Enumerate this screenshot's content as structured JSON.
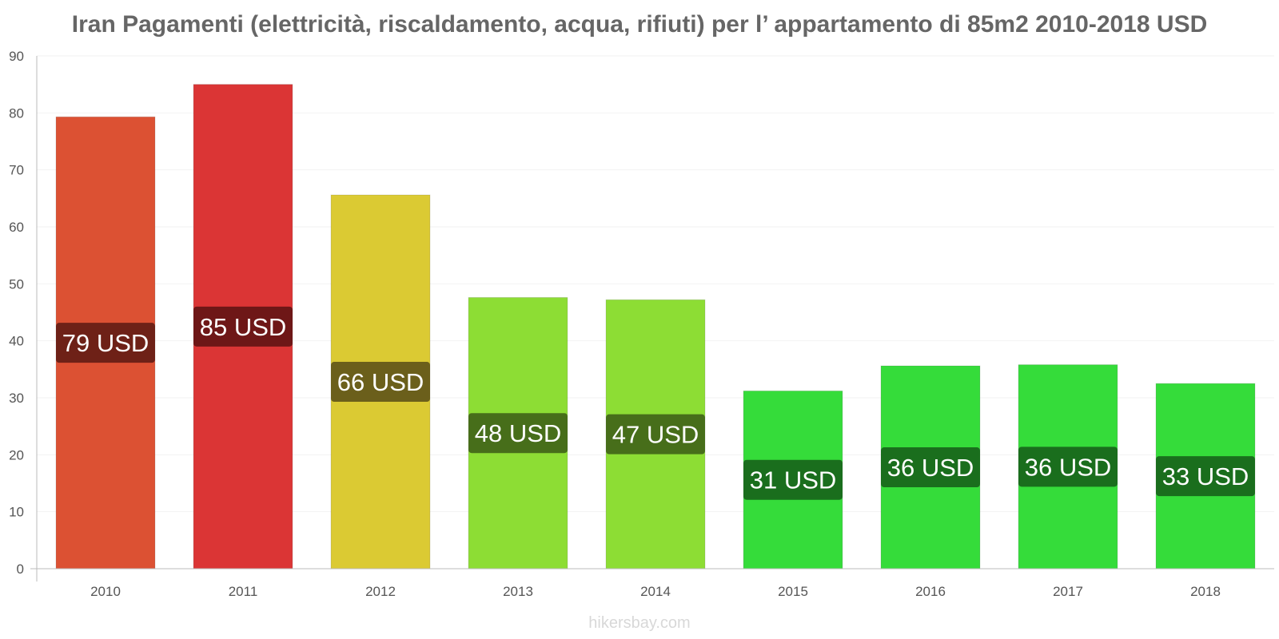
{
  "chart_data": {
    "type": "bar",
    "title": "Iran Pagamenti (elettricità, riscaldamento, acqua, rifiuti) per l’ appartamento di 85m2 2010-2018 USD",
    "xlabel": "",
    "ylabel": "",
    "categories": [
      "2010",
      "2011",
      "2012",
      "2013",
      "2014",
      "2015",
      "2016",
      "2017",
      "2018"
    ],
    "values": [
      79.3,
      85,
      65.6,
      47.6,
      47.2,
      31.2,
      35.6,
      35.8,
      32.5
    ],
    "data_labels": [
      "79 USD",
      "85 USD",
      "66 USD",
      "48 USD",
      "47 USD",
      "31 USD",
      "36 USD",
      "36 USD",
      "33 USD"
    ],
    "ylim": [
      0,
      90
    ],
    "yticks": [
      0,
      10,
      20,
      30,
      40,
      50,
      60,
      70,
      80,
      90
    ],
    "grid": true,
    "bar_colors": [
      "#dc5133",
      "#db3535",
      "#dbca33",
      "#8ddd34",
      "#8ddd34",
      "#35dc3a",
      "#35dc3a",
      "#35dc3a",
      "#35dc3a"
    ],
    "label_colors": [
      "#6e2117",
      "#6e1717",
      "#6b5f1b",
      "#476e1a",
      "#476e1a",
      "#1a6e1d",
      "#1a6e1d",
      "#1a6e1d",
      "#1a6e1d"
    ]
  },
  "watermark": "hikersbay.com"
}
